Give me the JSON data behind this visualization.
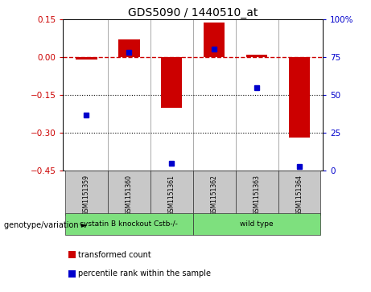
{
  "title": "GDS5090 / 1440510_at",
  "samples": [
    "GSM1151359",
    "GSM1151360",
    "GSM1151361",
    "GSM1151362",
    "GSM1151363",
    "GSM1151364"
  ],
  "transformed_count": [
    -0.01,
    0.07,
    -0.2,
    0.135,
    0.01,
    -0.32
  ],
  "percentile_rank": [
    37,
    78,
    5,
    80,
    55,
    3
  ],
  "group_defs": [
    {
      "indices": [
        0,
        1,
        2
      ],
      "label": "cystatin B knockout Cstb-/-",
      "color": "#7EE07E"
    },
    {
      "indices": [
        3,
        4,
        5
      ],
      "label": "wild type",
      "color": "#7EE07E"
    }
  ],
  "ylim_left": [
    -0.45,
    0.15
  ],
  "ylim_right": [
    0,
    100
  ],
  "yticks_left": [
    0.15,
    0.0,
    -0.15,
    -0.3,
    -0.45
  ],
  "yticks_right": [
    100,
    75,
    50,
    25,
    0
  ],
  "hline_y": 0.0,
  "dotted_lines": [
    -0.15,
    -0.3
  ],
  "bar_color": "#cc0000",
  "dot_color": "#0000cc",
  "bar_width": 0.5,
  "gray_color": "#c8c8c8",
  "genotype_label": "genotype/variation",
  "legend_items": [
    {
      "color": "#cc0000",
      "label": "transformed count"
    },
    {
      "color": "#0000cc",
      "label": "percentile rank within the sample"
    }
  ],
  "background_color": "#ffffff"
}
